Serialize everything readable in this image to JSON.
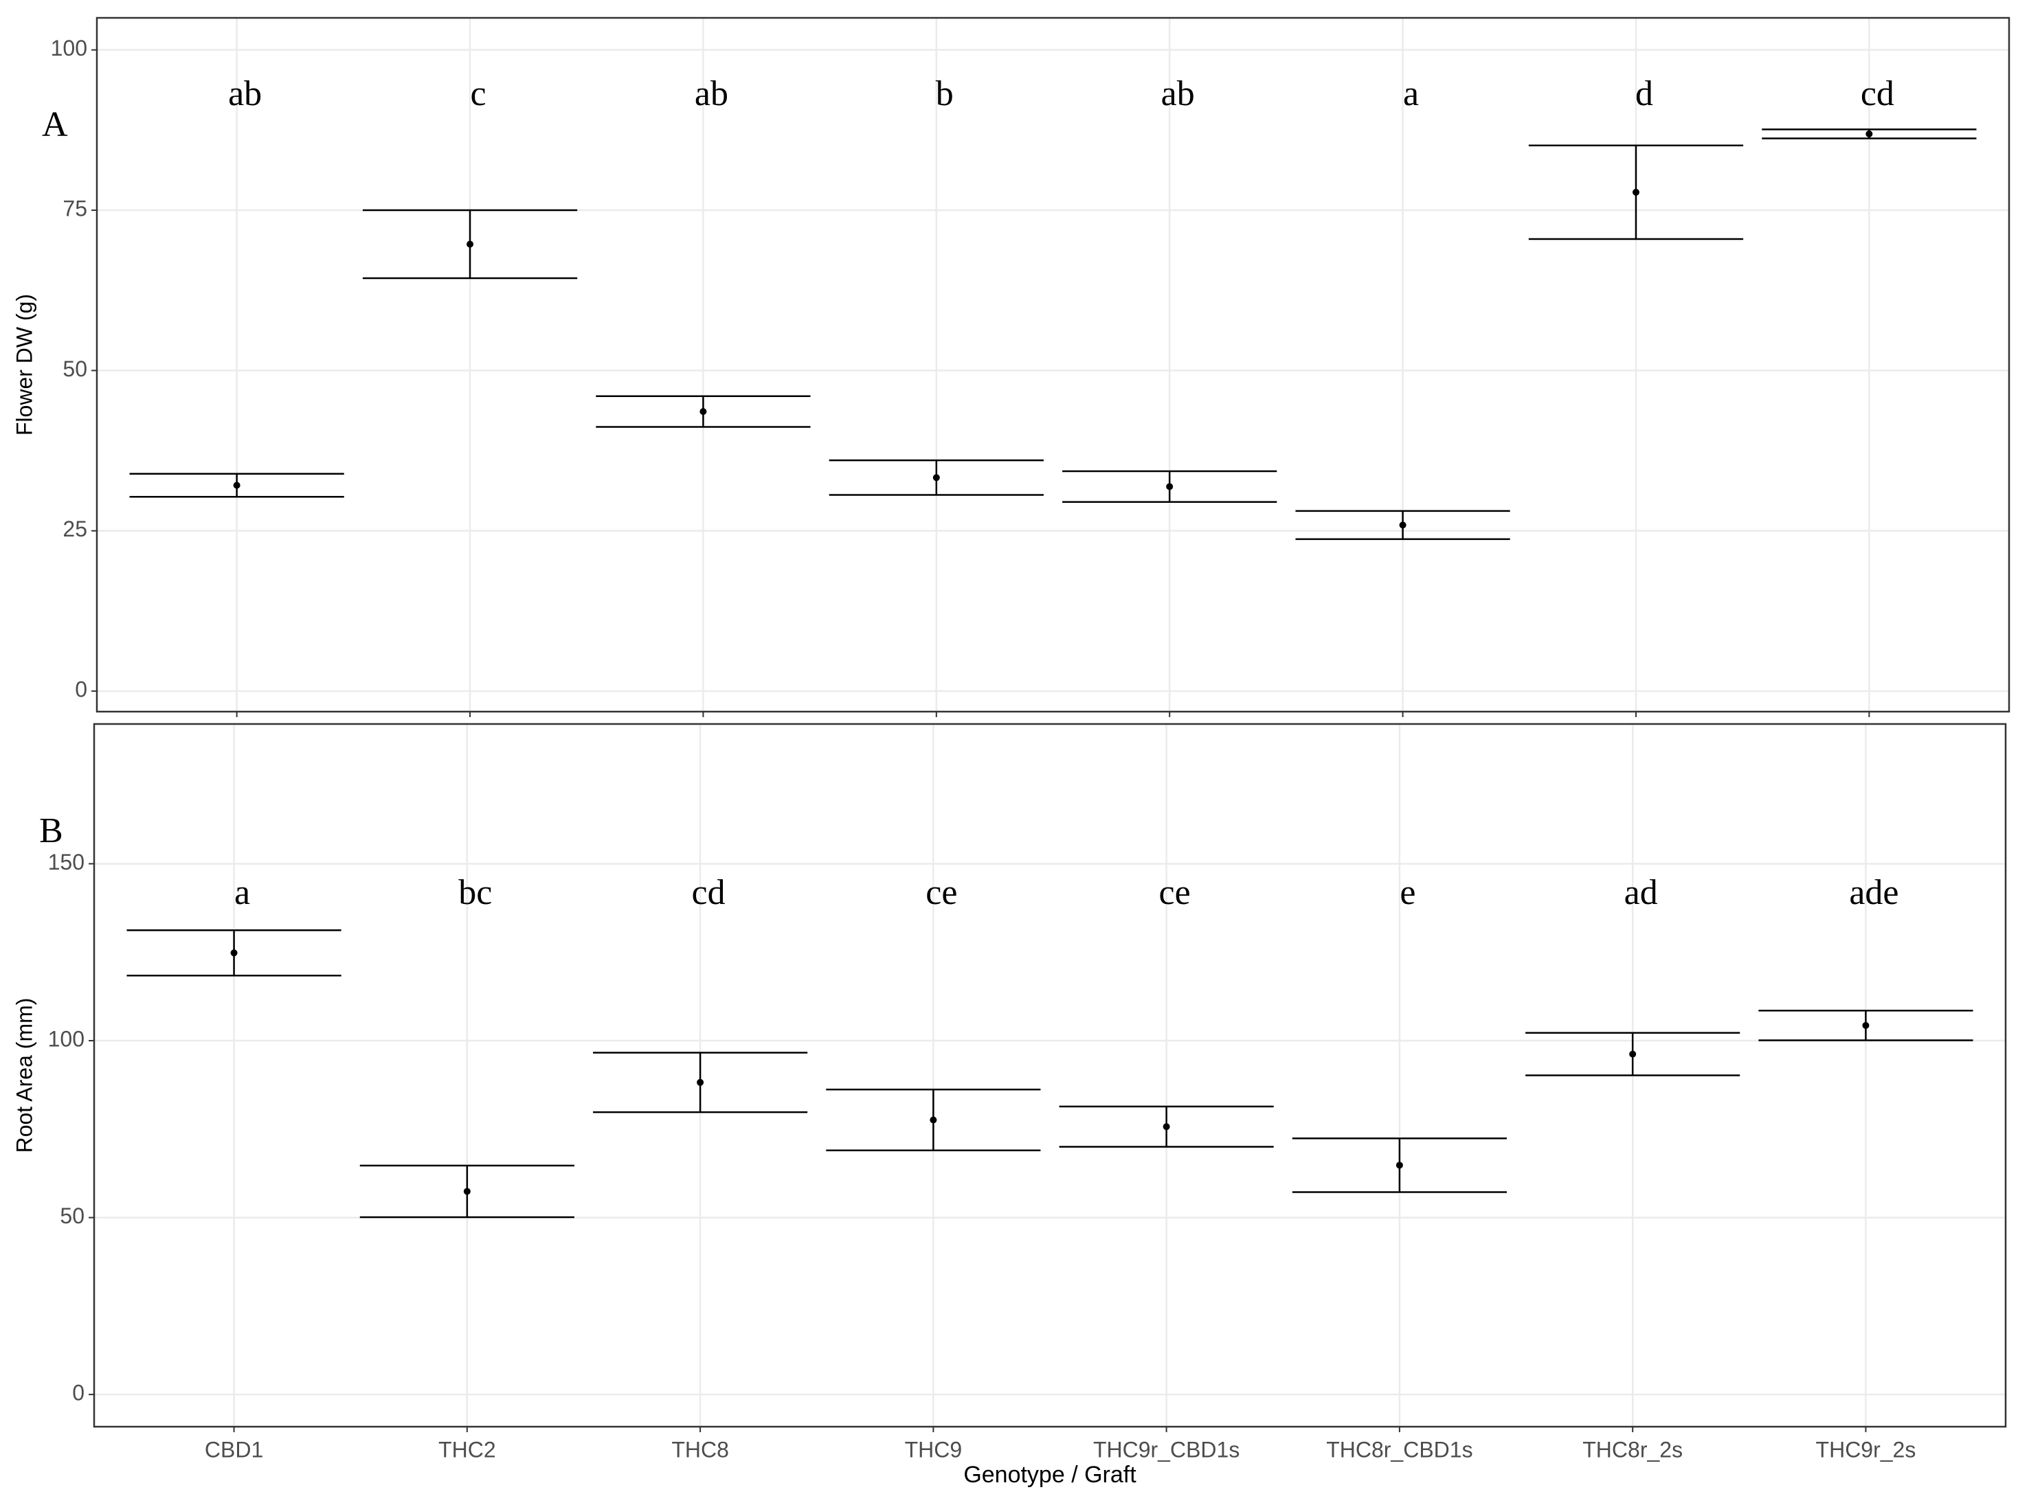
{
  "chart_data": [
    {
      "type": "errorbar",
      "panel_label": "A",
      "y_label": "Flower DW (g)",
      "categories": [
        null,
        null,
        null,
        null,
        null,
        null,
        null,
        null
      ],
      "values": [
        32.1,
        69.7,
        43.6,
        33.3,
        31.9,
        25.9,
        77.8,
        86.9
      ],
      "errors": [
        1.8,
        5.3,
        2.4,
        2.7,
        2.4,
        2.2,
        7.3,
        0.7
      ],
      "letters": [
        "ab",
        "c",
        "ab",
        "b",
        "ab",
        "a",
        "d",
        "cd"
      ],
      "ylim": [
        -3.2,
        105
      ],
      "yticks": [
        0,
        25,
        50,
        75,
        100
      ],
      "grid": true,
      "color": "#000000"
    },
    {
      "type": "errorbar",
      "panel_label": "B",
      "y_label": "Root Area (mm)",
      "x_label": "Genotype / Graft",
      "categories": [
        "CBD1",
        "THC2",
        "THC8",
        "THC9",
        "THC9r_CBD1s",
        "THC8r_CBD1s",
        "THC8r_2s",
        "THC9r_2s"
      ],
      "values": [
        124.8,
        57.4,
        88.2,
        77.6,
        75.7,
        64.8,
        96.2,
        104.3
      ],
      "errors": [
        6.4,
        7.3,
        8.4,
        8.6,
        5.7,
        7.6,
        6.0,
        4.2
      ],
      "letters": [
        "a",
        "bc",
        "cd",
        "ce",
        "ce",
        "e",
        "ad",
        "ade"
      ],
      "ylim": [
        -9.1,
        189.5
      ],
      "yticks": [
        0,
        50,
        100,
        150
      ],
      "grid": true,
      "color": "#000000"
    }
  ]
}
